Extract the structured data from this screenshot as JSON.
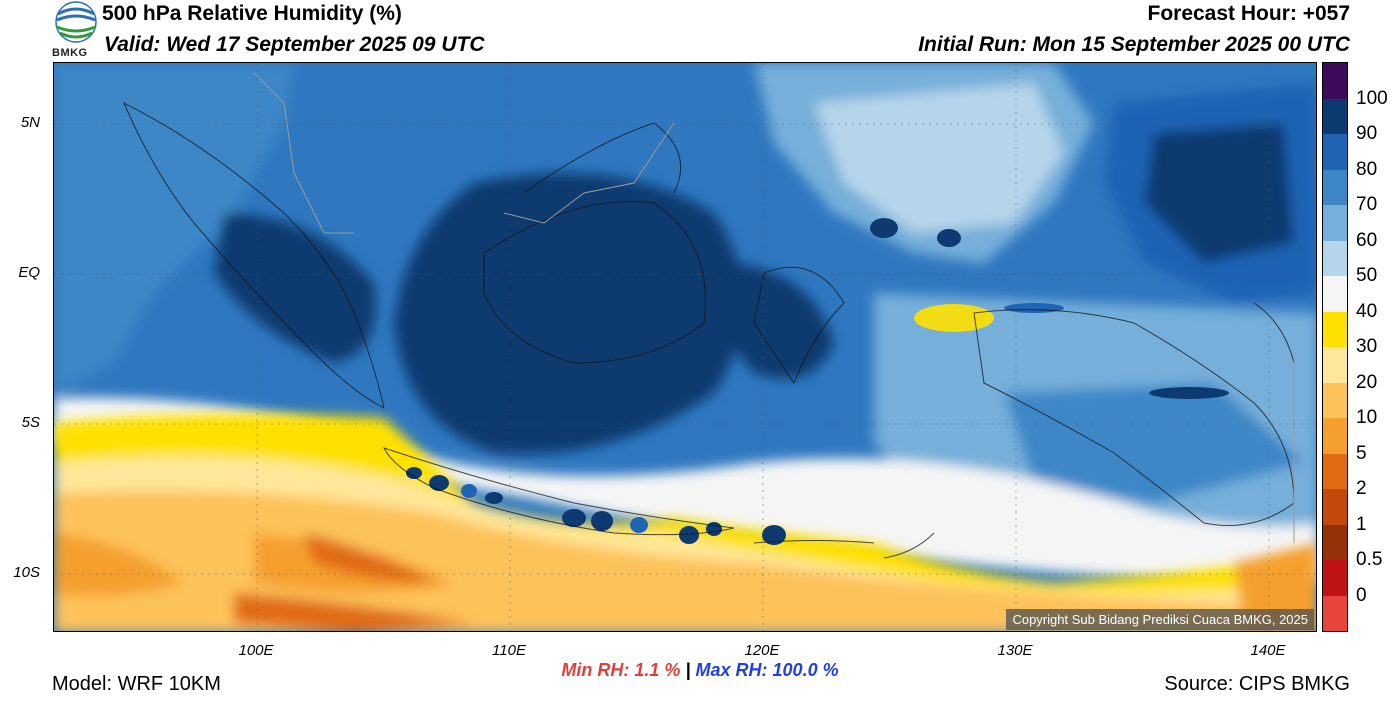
{
  "header": {
    "title": "500 hPa Relative Humidity (%)",
    "valid": "Valid: Wed 17 September 2025 09 UTC",
    "forecast_hour": "Forecast Hour: +057",
    "initial_run": "Initial Run: Mon 15 September 2025 00 UTC",
    "logo_text": "BMKG"
  },
  "map": {
    "lat_labels": [
      "5N",
      "EQ",
      "5S",
      "10S"
    ],
    "lon_labels": [
      "100E",
      "110E",
      "120E",
      "130E",
      "140E"
    ],
    "copyright": "Copyright Sub Bidang Prediksi Cuaca BMKG, 2025"
  },
  "colorbar": {
    "labels": [
      "100",
      "90",
      "80",
      "70",
      "60",
      "50",
      "40",
      "30",
      "20",
      "10",
      "5",
      "2",
      "1",
      "0.5",
      "0"
    ],
    "colors": [
      "#3d0a59",
      "#0d3a70",
      "#1f64b5",
      "#3d87c7",
      "#76afd9",
      "#b5d5ea",
      "#f5f5f5",
      "#ffe100",
      "#ffe79a",
      "#fdc25a",
      "#f5a02e",
      "#e06b14",
      "#c34a0a",
      "#963006",
      "#c01318",
      "#e8443a"
    ]
  },
  "stats": {
    "min_label": "Min RH:",
    "min_value": "1.1 %",
    "sep": "|",
    "max_label": "Max RH:",
    "max_value": "100.0 %"
  },
  "footer": {
    "model": "Model: WRF 10KM",
    "source": "Source: CIPS BMKG"
  }
}
